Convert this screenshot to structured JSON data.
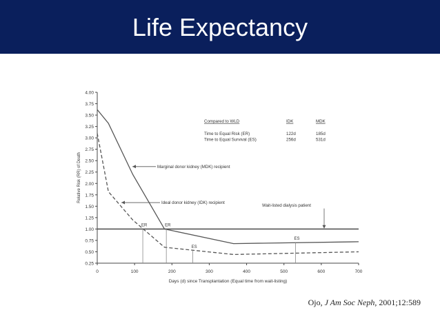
{
  "slide": {
    "title": "Life Expectancy",
    "title_bar_color": "#0a1f5c",
    "citation": {
      "author": "Ojo, ",
      "journal": "J Am Soc Neph",
      "rest": ", 2001;12:589"
    }
  },
  "chart_data": {
    "type": "line",
    "title": "",
    "xlabel": "Days (d) since Transplantation (Equal time from wait-listing)",
    "ylabel": "Relative Risk (RR) of Death",
    "xlim": [
      0,
      700
    ],
    "ylim": [
      0.25,
      4.0
    ],
    "x_ticks": [
      "0",
      "100",
      "200",
      "300",
      "400",
      "500",
      "600",
      "700"
    ],
    "y_ticks": [
      "0.25",
      "0.50",
      "0.75",
      "1.00",
      "1.25",
      "1.50",
      "1.75",
      "2.00",
      "2.25",
      "2.50",
      "2.75",
      "3.00",
      "3.25",
      "3.50",
      "3.75",
      "4.00"
    ],
    "grid": false,
    "series": [
      {
        "name": "Marginal donor kidney (MDK) recipient",
        "style": "solid",
        "points": [
          [
            0,
            3.62
          ],
          [
            30,
            3.32
          ],
          [
            95,
            2.2
          ],
          [
            180,
            1.0
          ],
          [
            365,
            0.68
          ],
          [
            700,
            0.72
          ]
        ]
      },
      {
        "name": "Ideal donor kidney (IDK) recipient",
        "style": "dashed",
        "points": [
          [
            0,
            3.1
          ],
          [
            30,
            1.82
          ],
          [
            95,
            1.2
          ],
          [
            180,
            0.6
          ],
          [
            365,
            0.44
          ],
          [
            700,
            0.5
          ]
        ]
      },
      {
        "name": "Wait-listed dialysis patient",
        "style": "solid",
        "points": [
          [
            0,
            1.0
          ],
          [
            700,
            1.0
          ]
        ]
      }
    ],
    "markers": [
      {
        "label": "ER",
        "x": 122,
        "y": 1.0
      },
      {
        "label": "ER",
        "x": 185,
        "y": 1.0
      },
      {
        "label": "ES",
        "x": 256,
        "y": 0.52
      },
      {
        "label": "ES",
        "x": 531,
        "y": 0.7
      }
    ],
    "annotation_table": {
      "headers": [
        "Compared to WLD",
        "IDK",
        "MDK"
      ],
      "rows": [
        [
          "Time to Equal Risk (ER)",
          "122d",
          "185d"
        ],
        [
          "Time to Equal Survival (ES)",
          "256d",
          "531d"
        ]
      ]
    }
  }
}
